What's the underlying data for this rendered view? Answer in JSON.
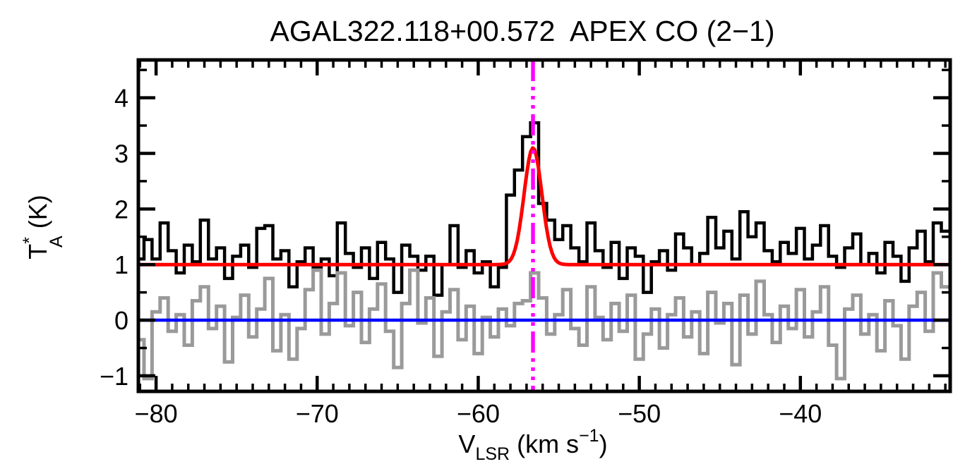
{
  "title": "AGAL322.118+00.572  APEX CO (2−1)",
  "colors": {
    "spectrum": "#000000",
    "residual": "#9a9a9a",
    "fit": "#ff0000",
    "zero_line": "#0000ff",
    "vlsr_marker": "#ff00ff",
    "frame": "#000000",
    "background": "#ffffff"
  },
  "chart_data": {
    "type": "line",
    "subtype": "spectrum-histogram",
    "title": "AGAL322.118+00.572  APEX CO (2−1)",
    "xlabel_parts": {
      "main": "V",
      "sub": "LSR",
      "mid": " (km s",
      "sup": "−1",
      "end": ")"
    },
    "ylabel_parts": {
      "main": "T",
      "sup": "*",
      "sub": "A",
      "rest": " (K)"
    },
    "xlim": [
      -81.1,
      -30.7
    ],
    "ylim": [
      -1.28,
      4.68
    ],
    "x_major_ticks": [
      -80,
      -70,
      -60,
      -50,
      -40
    ],
    "x_tick_labels": [
      "−80",
      "−70",
      "−60",
      "−50",
      "−40"
    ],
    "x_minor_step": 1,
    "y_major_ticks": [
      -1,
      0,
      1,
      2,
      3,
      4
    ],
    "y_tick_labels": [
      "−1",
      "0",
      "1",
      "2",
      "3",
      "4"
    ],
    "y_minor_step": 0.5,
    "channel_width_kms": 0.5,
    "x": [
      -81.0,
      -80.5,
      -80.0,
      -79.5,
      -79.0,
      -78.5,
      -78.0,
      -77.5,
      -77.0,
      -76.5,
      -76.0,
      -75.5,
      -75.0,
      -74.5,
      -74.0,
      -73.5,
      -73.0,
      -72.5,
      -72.0,
      -71.5,
      -71.0,
      -70.5,
      -70.0,
      -69.5,
      -69.0,
      -68.5,
      -68.0,
      -67.5,
      -67.0,
      -66.5,
      -66.0,
      -65.5,
      -65.0,
      -64.5,
      -64.0,
      -63.5,
      -63.0,
      -62.5,
      -62.0,
      -61.5,
      -61.0,
      -60.5,
      -60.0,
      -59.5,
      -59.0,
      -58.5,
      -58.0,
      -57.5,
      -57.0,
      -56.5,
      -56.0,
      -55.5,
      -55.0,
      -54.5,
      -54.0,
      -53.5,
      -53.0,
      -52.5,
      -52.0,
      -51.5,
      -51.0,
      -50.5,
      -50.0,
      -49.5,
      -49.0,
      -48.5,
      -48.0,
      -47.5,
      -47.0,
      -46.5,
      -46.0,
      -45.5,
      -45.0,
      -44.5,
      -44.0,
      -43.5,
      -43.0,
      -42.5,
      -42.0,
      -41.5,
      -41.0,
      -40.5,
      -40.0,
      -39.5,
      -39.0,
      -38.5,
      -38.0,
      -37.5,
      -37.0,
      -36.5,
      -36.0,
      -35.5,
      -35.0,
      -34.5,
      -34.0,
      -33.5,
      -33.0,
      -32.5,
      -32.0,
      -31.5,
      -31.0
    ],
    "series": [
      {
        "name": "spectrum-offset-baseline-1K",
        "color": "#000000",
        "style": "histogram",
        "values": [
          1.1,
          1.45,
          1.1,
          1.75,
          1.25,
          0.85,
          1.35,
          1.05,
          1.8,
          1.1,
          1.3,
          0.75,
          1.15,
          1.35,
          0.95,
          1.65,
          1.7,
          1.1,
          1.25,
          0.6,
          1.05,
          1.3,
          0.95,
          1.1,
          0.8,
          1.75,
          1.2,
          0.95,
          1.3,
          0.75,
          1.4,
          1.1,
          0.5,
          1.35,
          1.15,
          0.9,
          1.15,
          0.45,
          1.0,
          1.7,
          0.95,
          1.25,
          0.85,
          1.05,
          0.6,
          0.95,
          2.25,
          2.7,
          3.3,
          3.55,
          2.1,
          1.8,
          1.45,
          1.7,
          1.3,
          1.05,
          1.75,
          1.25,
          0.95,
          1.4,
          0.75,
          1.3,
          1.15,
          0.5,
          1.05,
          1.25,
          0.9,
          1.55,
          1.3,
          1.0,
          1.2,
          1.85,
          1.3,
          1.6,
          1.1,
          1.95,
          1.5,
          1.75,
          1.25,
          1.05,
          1.4,
          1.2,
          1.65,
          1.1,
          1.35,
          1.7,
          1.15,
          0.95,
          1.3,
          1.55,
          1.0,
          1.2,
          0.85,
          1.4,
          1.15,
          0.7,
          1.3,
          1.6,
          1.05,
          1.75,
          1.6
        ]
      },
      {
        "name": "residual-baseline-0K",
        "color": "#9a9a9a",
        "style": "histogram",
        "values": [
          -0.35,
          -1.05,
          0.15,
          0.4,
          -0.2,
          0.1,
          -0.45,
          0.35,
          0.6,
          -0.15,
          0.25,
          -0.75,
          0.05,
          0.45,
          -0.3,
          0.2,
          0.75,
          -0.55,
          0.1,
          -0.7,
          -0.15,
          0.55,
          0.9,
          -0.25,
          0.3,
          0.85,
          -0.1,
          0.5,
          -0.4,
          0.2,
          0.65,
          -0.2,
          -0.85,
          0.3,
          0.9,
          -0.05,
          0.4,
          -0.65,
          0.15,
          0.55,
          -0.35,
          0.25,
          -0.6,
          0.05,
          -0.3,
          0.2,
          -0.1,
          0.3,
          0.35,
          0.85,
          0.4,
          -0.25,
          0.1,
          0.55,
          -0.15,
          -0.45,
          0.6,
          0.05,
          -0.35,
          0.3,
          -0.2,
          0.45,
          -0.7,
          -0.25,
          0.2,
          -0.5,
          0.1,
          0.4,
          -0.3,
          0.15,
          -0.6,
          0.5,
          -0.05,
          0.3,
          -0.8,
          0.45,
          -0.25,
          0.7,
          0.1,
          -0.4,
          0.25,
          -0.15,
          0.55,
          -0.3,
          0.15,
          0.6,
          -0.45,
          -1.05,
          0.2,
          0.45,
          -0.25,
          0.1,
          -0.55,
          0.35,
          -0.1,
          -0.7,
          0.25,
          0.5,
          -0.2,
          0.85,
          0.6
        ]
      }
    ],
    "fit": {
      "name": "gaussian-fit",
      "color": "#ff0000",
      "baseline_K": 1.0,
      "amplitude_K": 2.1,
      "peak_K": 3.1,
      "center_kms": -56.6,
      "fwhm_kms": 1.3
    },
    "zero_line": {
      "y": 0,
      "color": "#0000ff"
    },
    "vlsr_marker": {
      "x": -56.6,
      "color": "#ff00ff",
      "style": "dash-dot-dot-dot"
    },
    "grid": false,
    "legend": false
  }
}
